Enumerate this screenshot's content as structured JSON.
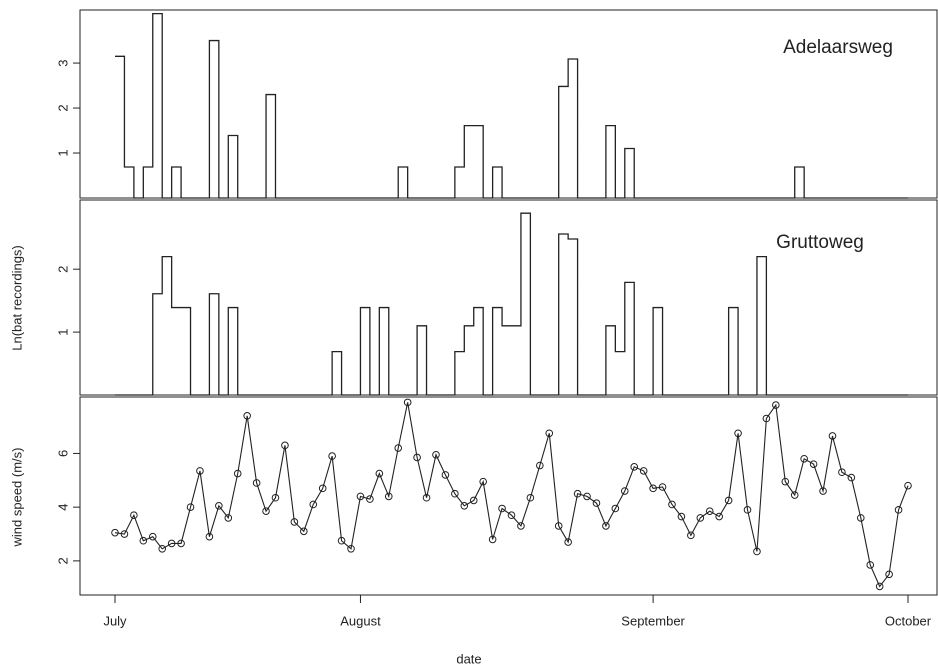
{
  "chart_data": [
    {
      "type": "step",
      "annotation": "Adelaarsweg",
      "color": "#222222",
      "values": [
        3.15,
        0.69,
        0,
        0.69,
        4.1,
        0,
        0.69,
        0,
        0,
        0,
        3.5,
        0,
        1.39,
        0,
        0,
        0,
        2.3,
        0,
        0,
        0,
        0,
        0,
        0,
        0,
        0,
        0,
        0,
        0,
        0,
        0,
        0.69,
        0,
        0,
        0,
        0,
        0,
        0.69,
        1.61,
        1.61,
        0,
        0.69,
        0,
        0,
        0,
        0,
        0,
        0,
        2.48,
        3.09,
        0,
        0,
        0,
        1.61,
        0,
        1.1,
        0,
        0,
        0,
        0,
        0,
        0,
        0,
        0,
        0,
        0,
        0,
        0,
        0,
        0,
        0,
        0,
        0,
        0.69,
        0,
        0,
        0,
        0,
        0,
        0,
        0,
        0,
        0,
        0,
        0,
        0
      ],
      "ylim": [
        0,
        4.18
      ],
      "yticks": [
        1,
        2,
        3
      ]
    },
    {
      "type": "step",
      "annotation": "Gruttoweg",
      "ylabel": "Ln(bat recordings)",
      "color": "#222222",
      "values": [
        0,
        0,
        0,
        0,
        1.61,
        2.2,
        1.39,
        1.39,
        0,
        0,
        1.61,
        0,
        1.39,
        0,
        0,
        0,
        0,
        0,
        0,
        0,
        0,
        0,
        0,
        0.69,
        0,
        0,
        1.39,
        0,
        1.39,
        0,
        0,
        0,
        1.1,
        0,
        0,
        0,
        0.69,
        1.1,
        1.39,
        0,
        1.39,
        1.1,
        1.1,
        2.89,
        0,
        0,
        0,
        2.56,
        2.48,
        0,
        0,
        0,
        1.1,
        0.69,
        1.79,
        0,
        0,
        1.39,
        0,
        0,
        0,
        0,
        0,
        0,
        0,
        1.39,
        0,
        0,
        2.2,
        0,
        0,
        0,
        0,
        0,
        0,
        0,
        0,
        0,
        0,
        0,
        0,
        0,
        0,
        0,
        0
      ],
      "ylim": [
        0,
        3.1
      ],
      "yticks": [
        1,
        2
      ]
    },
    {
      "type": "line",
      "ylabel": "wind speed (m/s)",
      "xlabel": "date",
      "color": "#222222",
      "categories": [
        "July",
        null,
        null,
        null,
        null,
        null,
        null,
        null,
        null,
        null,
        null,
        null,
        null,
        null,
        null,
        null,
        null,
        null,
        null,
        null,
        null,
        null,
        null,
        null,
        null,
        null,
        "August",
        null,
        null,
        null,
        null,
        null,
        null,
        null,
        null,
        null,
        null,
        null,
        null,
        null,
        null,
        null,
        null,
        null,
        null,
        null,
        null,
        null,
        null,
        null,
        null,
        null,
        null,
        null,
        null,
        null,
        null,
        "September",
        null,
        null,
        null,
        null,
        null,
        null,
        null,
        null,
        null,
        null,
        null,
        null,
        null,
        null,
        null,
        null,
        null,
        null,
        null,
        null,
        null,
        null,
        null,
        null,
        null,
        null,
        "October"
      ],
      "values": [
        3.05,
        3.0,
        3.7,
        2.75,
        2.9,
        2.45,
        2.65,
        2.65,
        4.0,
        5.35,
        2.9,
        4.05,
        3.6,
        5.25,
        7.4,
        4.9,
        3.85,
        4.35,
        6.3,
        3.45,
        3.1,
        4.1,
        4.7,
        5.9,
        2.75,
        2.45,
        4.4,
        4.3,
        5.25,
        4.4,
        6.2,
        7.9,
        5.85,
        4.35,
        5.95,
        5.2,
        4.5,
        4.05,
        4.25,
        4.95,
        2.8,
        3.95,
        3.7,
        3.3,
        4.35,
        5.55,
        6.75,
        3.3,
        2.7,
        4.5,
        4.4,
        4.15,
        3.3,
        3.95,
        4.6,
        5.5,
        5.35,
        4.7,
        4.75,
        4.1,
        3.65,
        2.95,
        3.6,
        3.85,
        3.65,
        4.25,
        6.75,
        3.9,
        2.35,
        7.3,
        7.8,
        4.95,
        4.45,
        5.8,
        5.6,
        4.6,
        6.65,
        5.3,
        5.1,
        3.6,
        1.85,
        1.05,
        1.5,
        3.9,
        4.8
      ],
      "ylim": [
        0.73,
        8.1
      ],
      "yticks": [
        2,
        4,
        6
      ]
    }
  ]
}
